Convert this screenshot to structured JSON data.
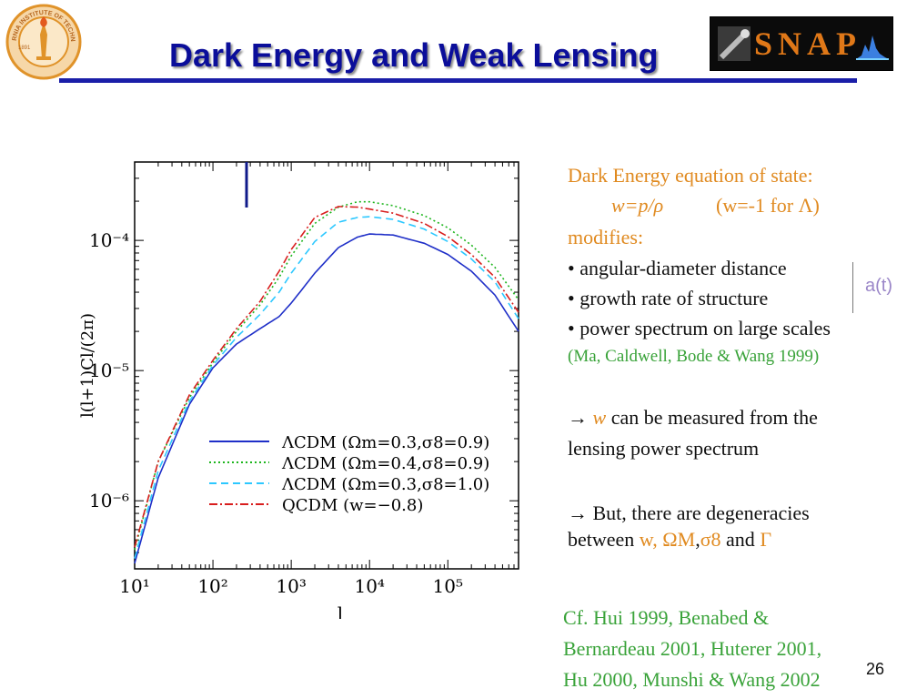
{
  "header": {
    "title": "Dark Energy and Weak Lensing",
    "logo_text": "SNAP",
    "seal_text": "CALIFORNIA INSTITUTE OF TECHNOLOGY",
    "seal_year": "1891"
  },
  "right_panel": {
    "line1": "Dark Energy equation of state:",
    "eq_w": "w=p/ρ",
    "eq_note": "(w=-1 for Λ)",
    "modifies": "modifies:",
    "bullet1": "• angular-diameter distance",
    "bullet2": "• growth rate of structure",
    "bullet3": "• power spectrum on large scales",
    "at_label": "a(t)",
    "citation1": "(Ma, Caldwell, Bode & Wang 1999)",
    "arrow1_sym": "→",
    "arrow1_w": "w",
    "arrow1_rest": "can be measured from the",
    "arrow1_line2": "lensing power spectrum",
    "arrow2_line1": "→ But, there are degeneracies",
    "arrow2_line2_a": "between",
    "arrow2_w": "w,",
    "arrow2_om": "ΩM",
    "arrow2_sep": ",",
    "arrow2_s8": "σ8",
    "arrow2_and": "and",
    "arrow2_gamma": "Γ",
    "cf_line1": "Cf. Hui 1999, Benabed &",
    "cf_line2": "Bernardeau 2001, Huterer 2001,",
    "cf_line3": "Hu 2000, Munshi & Wang 2002"
  },
  "page_number": "26",
  "chart_data": {
    "type": "line",
    "xlabel": "l",
    "ylabel": "l(l+1)Cl/(2π)",
    "xscale": "log",
    "yscale": "log",
    "xlim": [
      10,
      800000
    ],
    "ylim": [
      3e-07,
      0.0004
    ],
    "xticks": [
      {
        "v": 10,
        "label": "10¹"
      },
      {
        "v": 100,
        "label": "10²"
      },
      {
        "v": 1000,
        "label": "10³"
      },
      {
        "v": 10000,
        "label": "10⁴"
      },
      {
        "v": 100000,
        "label": "10⁵"
      }
    ],
    "yticks": [
      {
        "v": 1e-06,
        "label": "10⁻⁶"
      },
      {
        "v": 1e-05,
        "label": "10⁻⁵"
      },
      {
        "v": 0.0001,
        "label": "10⁻⁴"
      }
    ],
    "legend_position": "bottom-right",
    "series": [
      {
        "name": "ΛCDM (Ωm=0.3,σ8=0.9)",
        "color": "#1f2fc8",
        "dash": "",
        "x": [
          10,
          20,
          50,
          100,
          200,
          400,
          700,
          1000,
          2000,
          4000,
          7000,
          10000,
          20000,
          50000,
          100000,
          200000,
          400000,
          800000
        ],
        "y": [
          3.3e-07,
          1.5e-06,
          5.5e-06,
          1.05e-05,
          1.6e-05,
          2.1e-05,
          2.6e-05,
          3.3e-05,
          5.6e-05,
          8.8e-05,
          0.000106,
          0.000112,
          0.00011,
          9.5e-05,
          7.8e-05,
          5.8e-05,
          3.8e-05,
          2e-05
        ]
      },
      {
        "name": "ΛCDM (Ωm=0.4,σ8=0.9)",
        "color": "#1db51d",
        "dash": "2,3",
        "x": [
          10,
          20,
          50,
          100,
          200,
          400,
          700,
          1000,
          2000,
          4000,
          7000,
          10000,
          20000,
          50000,
          100000,
          200000,
          400000,
          800000
        ],
        "y": [
          4.2e-07,
          2e-06,
          6.2e-06,
          1.15e-05,
          2e-05,
          3.2e-05,
          5.2e-05,
          7.6e-05,
          0.000135,
          0.00018,
          0.000198,
          0.000198,
          0.000185,
          0.000155,
          0.000125,
          9.2e-05,
          6.2e-05,
          3.5e-05
        ]
      },
      {
        "name": "ΛCDM (Ωm=0.3,σ8=1.0)",
        "color": "#2dc8ff",
        "dash": "8,5",
        "x": [
          10,
          20,
          50,
          100,
          200,
          400,
          700,
          1000,
          2000,
          4000,
          7000,
          10000,
          20000,
          50000,
          100000,
          200000,
          400000,
          800000
        ],
        "y": [
          3.6e-07,
          1.7e-06,
          5.8e-06,
          1.1e-05,
          1.8e-05,
          2.7e-05,
          4e-05,
          5.6e-05,
          9.8e-05,
          0.000138,
          0.00015,
          0.000152,
          0.000145,
          0.000122,
          9.8e-05,
          7.2e-05,
          4.8e-05,
          2.5e-05
        ]
      },
      {
        "name": "QCDM (w=−0.8)",
        "color": "#d81e1e",
        "dash": "9,3,2,3",
        "x": [
          10,
          20,
          50,
          100,
          200,
          400,
          700,
          1000,
          2000,
          4000,
          7000,
          10000,
          20000,
          50000,
          100000,
          200000,
          400000,
          800000
        ],
        "y": [
          4.4e-07,
          2e-06,
          6.5e-06,
          1.2e-05,
          2.1e-05,
          3.4e-05,
          5.8e-05,
          8.5e-05,
          0.00015,
          0.000182,
          0.00018,
          0.000174,
          0.000162,
          0.000135,
          0.000107,
          7.8e-05,
          5.2e-05,
          2.8e-05
        ]
      }
    ]
  }
}
